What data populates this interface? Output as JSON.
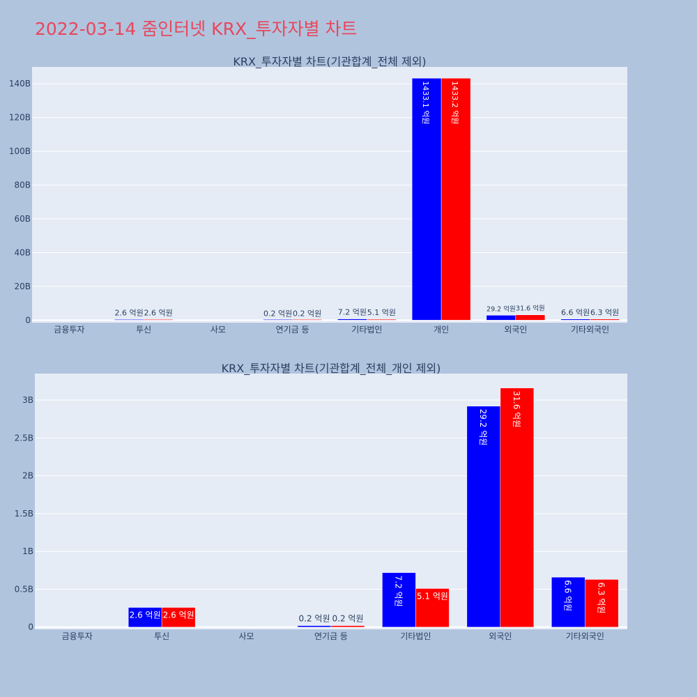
{
  "page": {
    "title": "2022-03-14 줌인터넷 KRX_투자자별 차트",
    "colors": {
      "background": "#b0c4de",
      "plot_bg": "#e5ecf6",
      "title": "#e8475c",
      "series_a": "#0000ff",
      "series_b": "#ff0000",
      "text": "#2a3f5f"
    }
  },
  "chart_data": [
    {
      "type": "bar",
      "title": "KRX_투자자별 차트(기관합계_전체 제외)",
      "categories": [
        "금융투자",
        "투신",
        "사모",
        "연기금 등",
        "기타법인",
        "개인",
        "외국인",
        "기타외국인"
      ],
      "series": [
        {
          "color": "#0000ff",
          "values": [
            0,
            0.26,
            0,
            0.02,
            0.72,
            143.31,
            2.92,
            0.66
          ],
          "labels": [
            "",
            "2.6 억원",
            "",
            "0.2 억원",
            "7.2 억원",
            "1433.1 억원",
            "29.2 억원",
            "6.6 억원"
          ]
        },
        {
          "color": "#ff0000",
          "values": [
            0,
            0.26,
            0,
            0.02,
            0.51,
            143.32,
            3.16,
            0.63
          ],
          "labels": [
            "",
            "2.6 억원",
            "",
            "0.2 억원",
            "5.1 억원",
            "1433.2 억원",
            "31.6 억원",
            "6.3 억원"
          ]
        }
      ],
      "ylim": [
        -1.5,
        150
      ],
      "yticks": [
        0,
        20,
        40,
        60,
        80,
        100,
        120,
        140
      ],
      "ytick_labels": [
        "0",
        "20B",
        "40B",
        "60B",
        "80B",
        "100B",
        "120B",
        "140B"
      ],
      "grid": true
    },
    {
      "type": "bar",
      "title": "KRX_투자자별 차트(기관합계_전체_개인 제외)",
      "categories": [
        "금융투자",
        "투신",
        "사모",
        "연기금 등",
        "기타법인",
        "외국인",
        "기타외국인"
      ],
      "series": [
        {
          "color": "#0000ff",
          "values": [
            0,
            0.26,
            0,
            0.02,
            0.72,
            2.92,
            0.66
          ],
          "labels": [
            "",
            "2.6 억원",
            "",
            "0.2 억원",
            "7.2 억원",
            "29.2 억원",
            "6.6 억원"
          ]
        },
        {
          "color": "#ff0000",
          "values": [
            0,
            0.26,
            0,
            0.02,
            0.51,
            3.16,
            0.63
          ],
          "labels": [
            "",
            "2.6 억원",
            "",
            "0.2 억원",
            "5.1 억원",
            "31.6 억원",
            "6.3 억원"
          ]
        }
      ],
      "ylim": [
        -0.03,
        3.35
      ],
      "yticks": [
        0,
        0.5,
        1,
        1.5,
        2,
        2.5,
        3
      ],
      "ytick_labels": [
        "0",
        "0.5B",
        "1B",
        "1.5B",
        "2B",
        "2.5B",
        "3B"
      ],
      "grid": true
    }
  ]
}
